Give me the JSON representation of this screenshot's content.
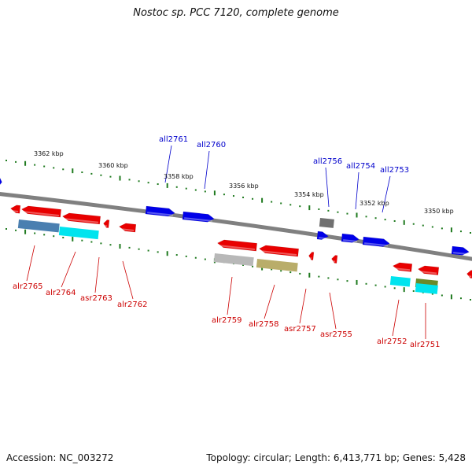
{
  "title": "Nostoc sp. PCC 7120, complete genome",
  "footer": {
    "accession": "Accession: NC_003272",
    "topology": "Topology: circular; Length: 6,413,771 bp; Genes: 5,428"
  },
  "colors": {
    "forward_gene": "#e80000",
    "reverse_gene": "#0000e8",
    "backbone": "#808080",
    "tick": "#1f7a1f",
    "reverse_label": "#0000cc",
    "forward_label": "#cc0000",
    "cog_steelblue": "#4a7fb0",
    "cog_cyan": "#00e4ee",
    "cog_gray": "#b8b8b8",
    "cog_olive": "#b9ad6a",
    "cog_darkgray": "#707070",
    "cog_green": "#6a8a2a"
  },
  "ruler_labels": [
    "3362 kbp",
    "3360 kbp",
    "3358 kbp",
    "3356 kbp",
    "3354 kbp",
    "3352 kbp",
    "3350 kbp"
  ],
  "reverse_gene_labels": [
    "all2761",
    "all2760",
    "all2756",
    "all2754",
    "all2753"
  ],
  "forward_gene_labels": [
    "alr2765",
    "alr2764",
    "asr2763",
    "alr2762",
    "alr2759",
    "alr2758",
    "asr2757",
    "asr2755",
    "alr2752",
    "alr2751"
  ]
}
